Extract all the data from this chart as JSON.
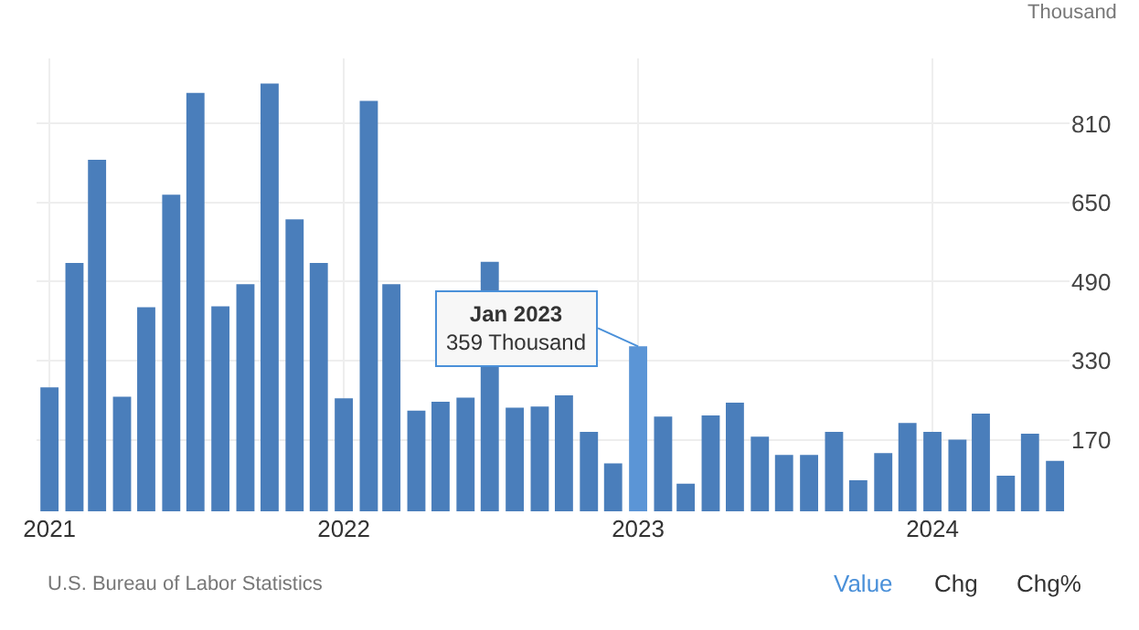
{
  "chart_data": {
    "type": "bar",
    "x": [
      "2021-01",
      "2021-02",
      "2021-03",
      "2021-04",
      "2021-05",
      "2021-06",
      "2021-07",
      "2021-08",
      "2021-09",
      "2021-10",
      "2021-11",
      "2021-12",
      "2022-01",
      "2022-02",
      "2022-03",
      "2022-04",
      "2022-05",
      "2022-06",
      "2022-07",
      "2022-08",
      "2022-09",
      "2022-10",
      "2022-11",
      "2022-12",
      "2023-01",
      "2023-02",
      "2023-03",
      "2023-04",
      "2023-05",
      "2023-06",
      "2023-07",
      "2023-08",
      "2023-09",
      "2023-10",
      "2023-11",
      "2023-12",
      "2024-01",
      "2024-02",
      "2024-03",
      "2024-04",
      "2024-05",
      "2024-06"
    ],
    "values": [
      276,
      528,
      737,
      257,
      438,
      666,
      872,
      440,
      485,
      891,
      616,
      528,
      254,
      856,
      485,
      229,
      247,
      255,
      530,
      235,
      237,
      260,
      186,
      122,
      359,
      217,
      81,
      219,
      245,
      176,
      139,
      139,
      186,
      88,
      143,
      204,
      186,
      170,
      223,
      97,
      182,
      127
    ],
    "colors": [
      "#4a7ebb",
      "#4a7ebb",
      "#4a7ebb",
      "#4a7ebb",
      "#4a7ebb",
      "#4a7ebb",
      "#4a7ebb",
      "#4a7ebb",
      "#4a7ebb",
      "#4a7ebb",
      "#4a7ebb",
      "#4a7ebb",
      "#4a7ebb",
      "#4a7ebb",
      "#4a7ebb",
      "#4a7ebb",
      "#4a7ebb",
      "#4a7ebb",
      "#4a7ebb",
      "#4a7ebb",
      "#4a7ebb",
      "#4a7ebb",
      "#4a7ebb",
      "#4a7ebb",
      "#5b95d6",
      "#4a7ebb",
      "#4a7ebb",
      "#4a7ebb",
      "#4a7ebb",
      "#4a7ebb",
      "#4a7ebb",
      "#4a7ebb",
      "#4a7ebb",
      "#4a7ebb",
      "#4a7ebb",
      "#4a7ebb",
      "#4a7ebb",
      "#4a7ebb",
      "#4a7ebb",
      "#4a7ebb",
      "#4a7ebb",
      "#4a7ebb"
    ],
    "xlim": [
      "2020-12-16",
      "2024-06-19"
    ],
    "xticks": [
      {
        "value": "2021-01",
        "label": "2021"
      },
      {
        "value": "2022-01",
        "label": "2022"
      },
      {
        "value": "2023-01",
        "label": "2023"
      },
      {
        "value": "2024-01",
        "label": "2024"
      }
    ],
    "ylim": [
      25,
      942
    ],
    "yticks": [
      170,
      330,
      490,
      650,
      810
    ],
    "grid": true,
    "ylabel": "Thousand",
    "annotations": [
      "U.S. Bureau of Labor Statistics",
      "Value",
      "Chg",
      "Chg%",
      {
        "text": "Jan 2023\n359 Thousand",
        "x": "2023-01",
        "y": 359
      }
    ]
  }
}
